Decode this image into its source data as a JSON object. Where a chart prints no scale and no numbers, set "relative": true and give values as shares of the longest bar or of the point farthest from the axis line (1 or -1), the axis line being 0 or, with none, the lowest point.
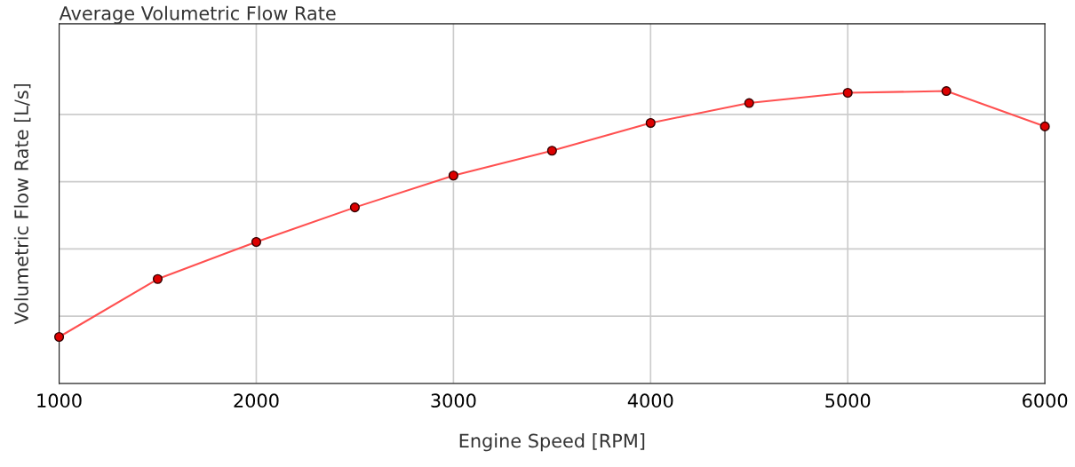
{
  "chart_data": {
    "type": "line",
    "title": "Average Volumetric Flow Rate",
    "xlabel": "Engine Speed [RPM]",
    "ylabel": "Volumetric Flow Rate [L/s]",
    "x": [
      1000,
      1500,
      2000,
      2500,
      3000,
      3500,
      4000,
      4500,
      5000,
      5500,
      6000
    ],
    "series": [
      {
        "color": "#ff5050",
        "values": [
          0.159,
          0.357,
          0.484,
          0.602,
          0.711,
          0.796,
          0.891,
          0.959,
          0.994,
          1,
          0.879
        ]
      }
    ],
    "relative": true,
    "xlim": [
      1000,
      6000
    ],
    "xticks": [
      1000,
      2000,
      3000,
      4000,
      5000,
      6000
    ],
    "tick_labels": "x",
    "grid": true,
    "marker": "circle",
    "line_style": "solid"
  }
}
